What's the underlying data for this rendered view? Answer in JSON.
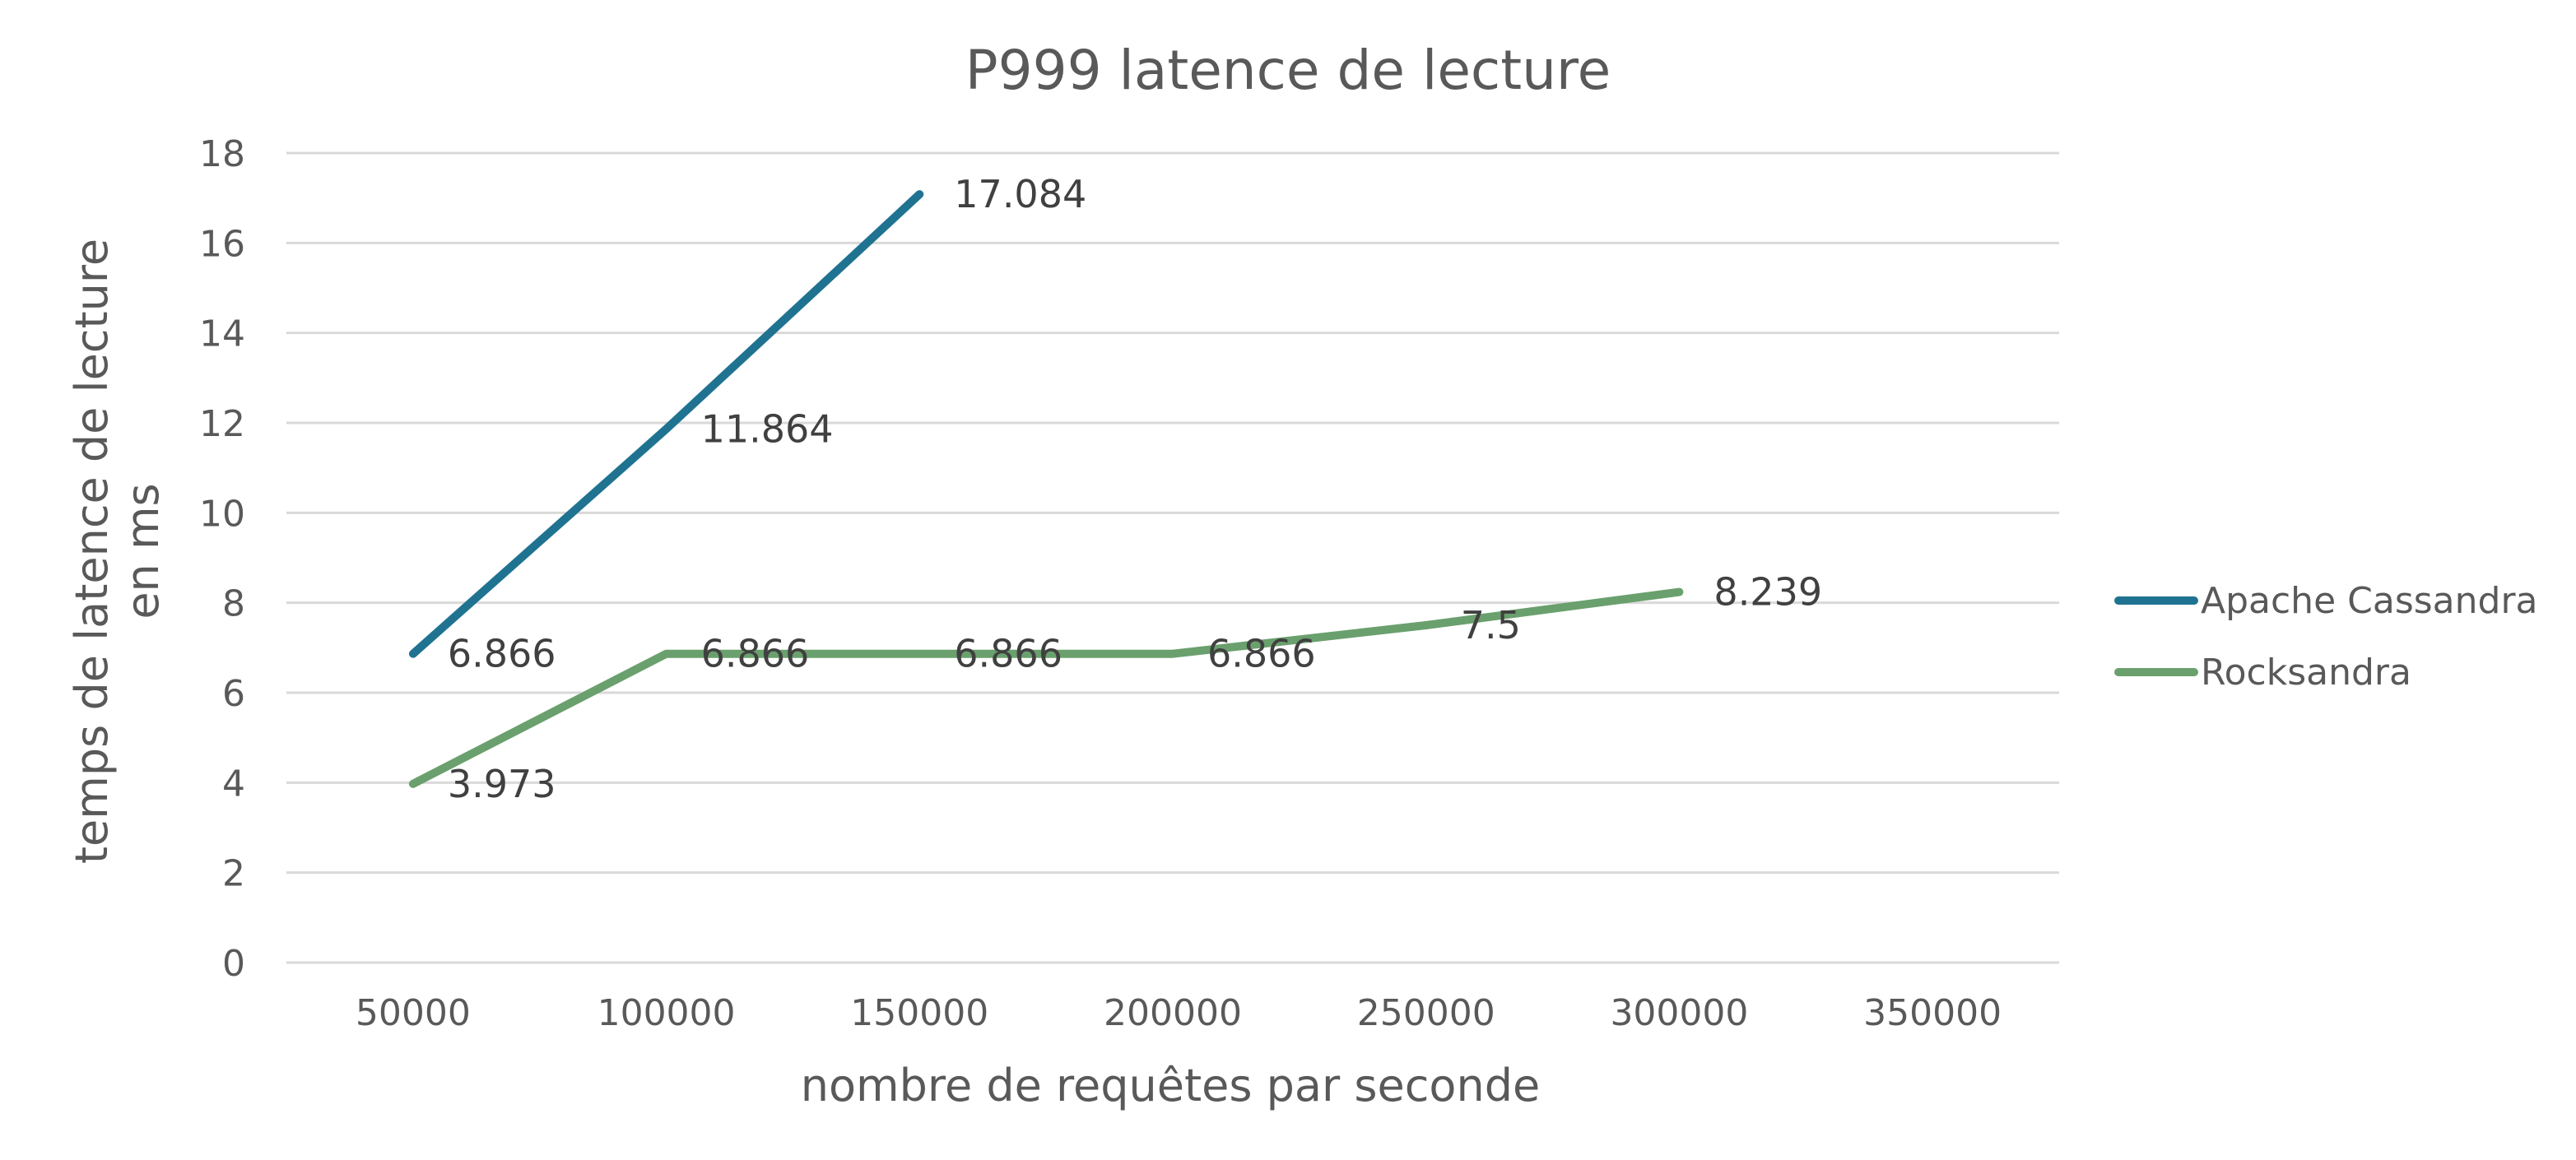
{
  "chart_data": {
    "type": "line",
    "title": "P999 latence de lecture",
    "xlabel": "nombre de requêtes par seconde",
    "ylabel_lines": [
      "temps de latence de lecture",
      "en ms"
    ],
    "x": [
      50000,
      100000,
      150000,
      200000,
      250000,
      300000
    ],
    "x_ticks": [
      50000,
      100000,
      150000,
      200000,
      250000,
      300000,
      350000
    ],
    "y_ticks": [
      0,
      2,
      4,
      6,
      8,
      10,
      12,
      14,
      16,
      18
    ],
    "ylim": [
      0,
      18
    ],
    "grid": true,
    "legend_position": "right",
    "series": [
      {
        "name": "Apache Cassandra",
        "color": "#1f7391",
        "values": [
          6.866,
          11.864,
          17.084,
          null,
          null,
          null
        ],
        "labels": [
          "6.866",
          "11.864",
          "17.084",
          null,
          null,
          null
        ]
      },
      {
        "name": "Rocksandra",
        "color": "#6aa06d",
        "values": [
          3.973,
          6.866,
          6.866,
          6.866,
          7.5,
          8.239
        ],
        "labels": [
          "3.973",
          "6.866",
          "6.866",
          "6.866",
          "7.5",
          "8.239"
        ]
      }
    ]
  }
}
